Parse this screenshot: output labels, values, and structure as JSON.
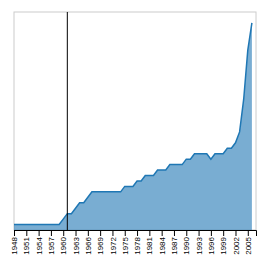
{
  "chart_data": {
    "type": "area",
    "x": [
      1948,
      1949,
      1950,
      1951,
      1952,
      1953,
      1954,
      1955,
      1956,
      1957,
      1958,
      1959,
      1960,
      1961,
      1962,
      1963,
      1964,
      1965,
      1966,
      1967,
      1968,
      1969,
      1970,
      1971,
      1972,
      1973,
      1974,
      1975,
      1976,
      1977,
      1978,
      1979,
      1980,
      1981,
      1982,
      1983,
      1984,
      1985,
      1986,
      1987,
      1988,
      1989,
      1990,
      1991,
      1992,
      1993,
      1994,
      1995,
      1996,
      1997,
      1998,
      1999,
      2000,
      2001,
      2002,
      2003,
      2004,
      2005,
      2006
    ],
    "values": [
      1,
      1,
      1,
      1,
      1,
      1,
      1,
      1,
      1,
      1,
      1,
      1,
      2,
      3,
      3,
      4,
      5,
      5,
      6,
      7,
      7,
      7,
      7,
      7,
      7,
      7,
      7,
      8,
      8,
      8,
      9,
      9,
      10,
      10,
      10,
      11,
      11,
      11,
      12,
      12,
      12,
      12,
      13,
      13,
      14,
      14,
      14,
      14,
      13,
      14,
      14,
      14,
      15,
      15,
      16,
      18,
      24,
      33,
      38
    ],
    "xlim": [
      1948,
      2007
    ],
    "ylim": [
      0,
      40
    ],
    "xticks": [
      1948,
      1951,
      1954,
      1957,
      1960,
      1963,
      1966,
      1969,
      1972,
      1975,
      1978,
      1981,
      1984,
      1987,
      1990,
      1993,
      1996,
      1999,
      2002,
      2005
    ],
    "vlines": [
      1961
    ],
    "tick_labels": "x"
  }
}
